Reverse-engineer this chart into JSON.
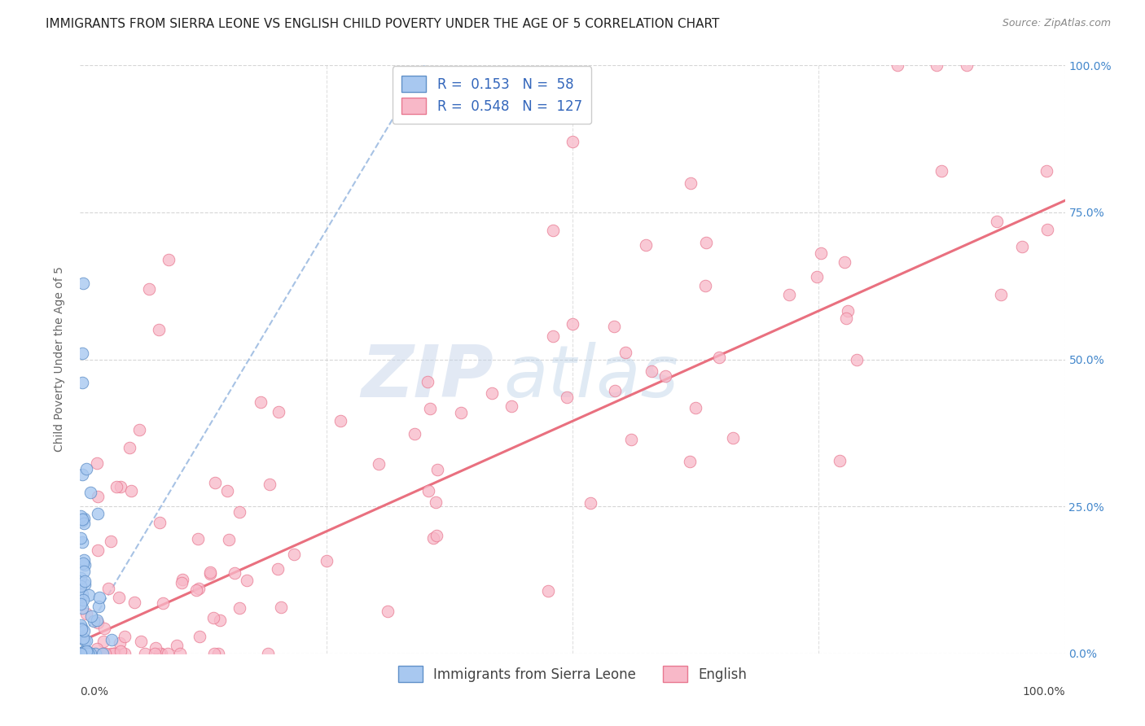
{
  "title": "IMMIGRANTS FROM SIERRA LEONE VS ENGLISH CHILD POVERTY UNDER THE AGE OF 5 CORRELATION CHART",
  "source": "Source: ZipAtlas.com",
  "ylabel": "Child Poverty Under the Age of 5",
  "ytick_labels": [
    "0.0%",
    "25.0%",
    "50.0%",
    "75.0%",
    "100.0%"
  ],
  "ytick_values": [
    0.0,
    0.25,
    0.5,
    0.75,
    1.0
  ],
  "legend_blue_label": "Immigrants from Sierra Leone",
  "legend_pink_label": "English",
  "R_blue": 0.153,
  "N_blue": 58,
  "R_pink": 0.548,
  "N_pink": 127,
  "blue_scatter_color": "#A8C8F0",
  "blue_edge_color": "#6090C8",
  "pink_scatter_color": "#F8B8C8",
  "pink_edge_color": "#E87890",
  "blue_line_color": "#98B8E0",
  "pink_line_color": "#E86878",
  "title_fontsize": 11,
  "source_fontsize": 9,
  "axis_label_fontsize": 10,
  "tick_fontsize": 10,
  "legend_fontsize": 12,
  "watermark_color": "#C8D8F0",
  "background_color": "#FFFFFF",
  "grid_color": "#CCCCCC"
}
